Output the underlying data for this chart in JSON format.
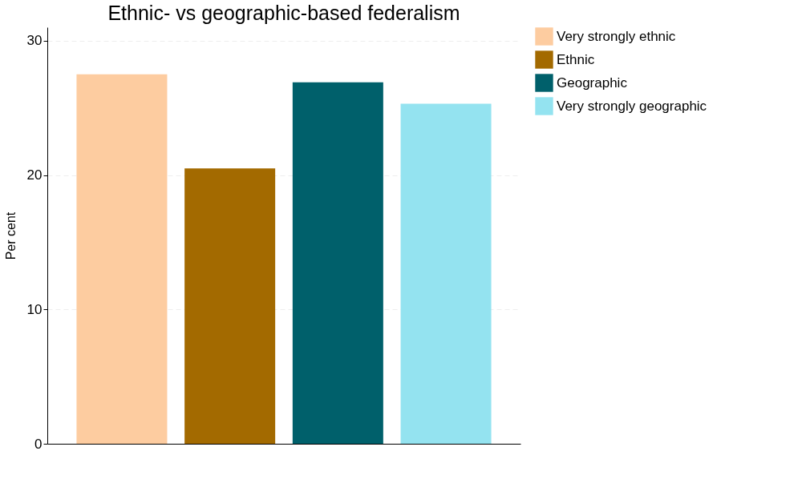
{
  "chart_data": {
    "type": "bar",
    "title": "Ethnic- vs geographic-based federalism",
    "ylabel": "Per cent",
    "categories": [
      null,
      null,
      null,
      null
    ],
    "series": [
      {
        "name": "Very strongly ethnic",
        "color": "#fdcca0",
        "values": [
          27.5,
          null,
          null,
          null
        ]
      },
      {
        "name": "Ethnic",
        "color": "#a36a00",
        "values": [
          null,
          20.5,
          null,
          null
        ]
      },
      {
        "name": "Geographic",
        "color": "#00606b",
        "values": [
          null,
          null,
          26.9,
          null
        ]
      },
      {
        "name": "Very strongly geographic",
        "color": "#94e3f0",
        "values": [
          null,
          null,
          null,
          25.3
        ]
      }
    ],
    "ylim": [
      0,
      31
    ],
    "yticks": [
      0,
      10,
      20,
      30
    ],
    "grid": "y",
    "legend": "right",
    "tick_labels": "y"
  }
}
